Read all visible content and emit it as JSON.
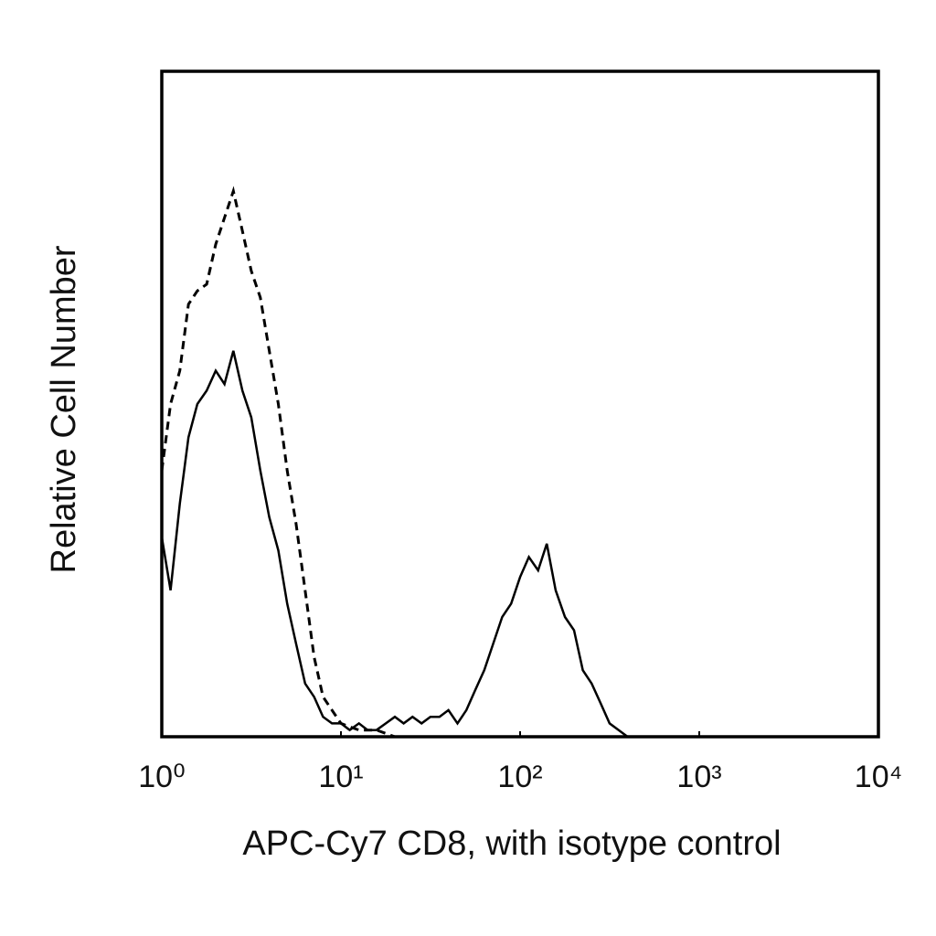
{
  "chart_data": {
    "type": "histogram-line",
    "xlabel": "APC-Cy7 CD8, with isotype control",
    "ylabel": "Relative Cell Number",
    "xscale": "log",
    "xlim": [
      1,
      10000
    ],
    "ylim": [
      0,
      100
    ],
    "xticks": [
      {
        "value": 1,
        "label": "10⁰"
      },
      {
        "value": 10,
        "label": "10¹"
      },
      {
        "value": 100,
        "label": "10²"
      },
      {
        "value": 1000,
        "label": "10³"
      },
      {
        "value": 10000,
        "label": "10⁴"
      }
    ],
    "x": [
      1,
      1.12,
      1.26,
      1.41,
      1.58,
      1.78,
      2.0,
      2.24,
      2.51,
      2.82,
      3.16,
      3.55,
      3.98,
      4.47,
      5.01,
      5.62,
      6.31,
      7.08,
      7.94,
      8.91,
      10,
      11.2,
      12.6,
      14.1,
      15.8,
      17.8,
      20,
      22.4,
      25.1,
      28.2,
      31.6,
      35.5,
      39.8,
      44.7,
      50.1,
      56.2,
      63.1,
      70.8,
      79.4,
      89.1,
      100,
      112,
      126,
      141,
      158,
      178,
      200,
      224,
      251,
      282,
      316,
      355,
      398
    ],
    "series": [
      {
        "color": "#000000",
        "dashed": false,
        "values": [
          30,
          22,
          35,
          45,
          50,
          52,
          55,
          53,
          58,
          52,
          48,
          40,
          33,
          28,
          20,
          14,
          8,
          6,
          3,
          2,
          2,
          1,
          2,
          1,
          1,
          2,
          3,
          2,
          3,
          2,
          3,
          3,
          4,
          2,
          4,
          7,
          10,
          14,
          18,
          20,
          24,
          27,
          25,
          29,
          22,
          18,
          16,
          10,
          8,
          5,
          2,
          1,
          0
        ]
      },
      {
        "color": "#000000",
        "dashed": true,
        "values": [
          40,
          50,
          55,
          65,
          67,
          68,
          74,
          78,
          82,
          76,
          70,
          66,
          58,
          50,
          40,
          32,
          22,
          12,
          6,
          4,
          2,
          1.5,
          1,
          1,
          1,
          0.5,
          0,
          null,
          null,
          null,
          null,
          null,
          null,
          null,
          null,
          null,
          null,
          null,
          null,
          null,
          null,
          null,
          null,
          null,
          null,
          null,
          null,
          null,
          null,
          null,
          null,
          null,
          null
        ]
      }
    ]
  }
}
